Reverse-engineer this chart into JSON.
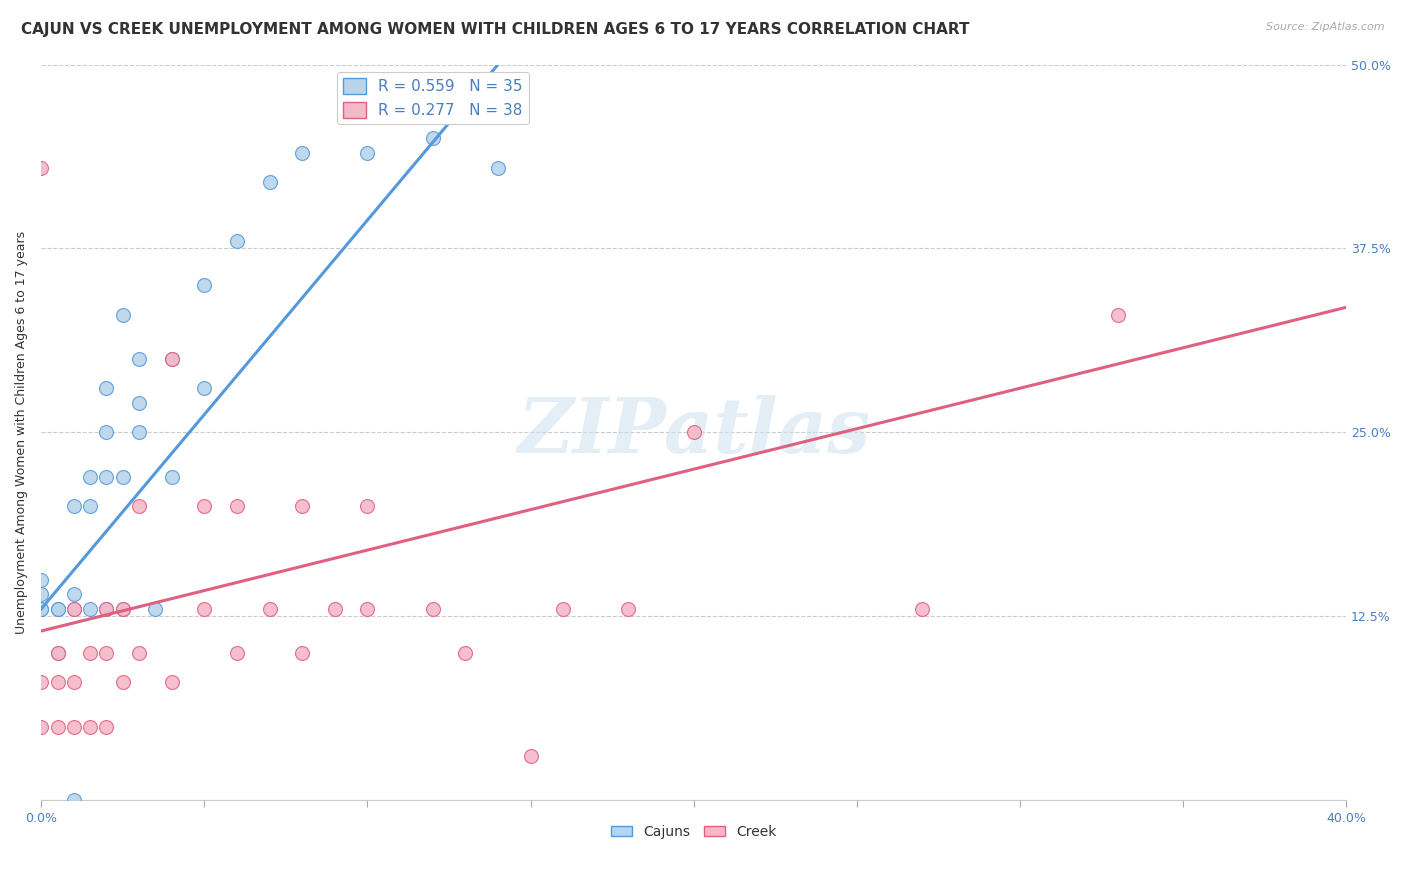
{
  "title": "CAJUN VS CREEK UNEMPLOYMENT AMONG WOMEN WITH CHILDREN AGES 6 TO 17 YEARS CORRELATION CHART",
  "source": "Source: ZipAtlas.com",
  "ylabel": "Unemployment Among Women with Children Ages 6 to 17 years",
  "xlim": [
    0.0,
    0.4
  ],
  "ylim": [
    0.0,
    0.5
  ],
  "xticks": [
    0.0,
    0.05,
    0.1,
    0.15,
    0.2,
    0.25,
    0.3,
    0.35,
    0.4
  ],
  "yticks_right": [
    0.0,
    0.125,
    0.25,
    0.375,
    0.5
  ],
  "ytick_right_labels": [
    "",
    "12.5%",
    "25.0%",
    "37.5%",
    "50.0%"
  ],
  "cajun_R": 0.559,
  "cajun_N": 35,
  "creek_R": 0.277,
  "creek_N": 38,
  "cajun_color": "#b8d4ea",
  "creek_color": "#f5b8c8",
  "cajun_line_color": "#5599dd",
  "creek_line_color": "#e06080",
  "cajun_scatter_x": [
    0.0,
    0.0,
    0.0,
    0.0,
    0.005,
    0.005,
    0.005,
    0.01,
    0.01,
    0.01,
    0.01,
    0.015,
    0.015,
    0.015,
    0.02,
    0.02,
    0.02,
    0.02,
    0.025,
    0.025,
    0.025,
    0.03,
    0.03,
    0.03,
    0.035,
    0.04,
    0.04,
    0.05,
    0.05,
    0.06,
    0.07,
    0.08,
    0.1,
    0.12,
    0.14
  ],
  "cajun_scatter_y": [
    0.13,
    0.13,
    0.14,
    0.15,
    0.1,
    0.13,
    0.13,
    0.0,
    0.13,
    0.14,
    0.2,
    0.13,
    0.2,
    0.22,
    0.13,
    0.22,
    0.25,
    0.28,
    0.13,
    0.22,
    0.33,
    0.25,
    0.27,
    0.3,
    0.13,
    0.22,
    0.3,
    0.28,
    0.35,
    0.38,
    0.42,
    0.44,
    0.44,
    0.45,
    0.43
  ],
  "creek_scatter_x": [
    0.0,
    0.0,
    0.0,
    0.005,
    0.005,
    0.005,
    0.01,
    0.01,
    0.01,
    0.015,
    0.015,
    0.02,
    0.02,
    0.02,
    0.025,
    0.025,
    0.03,
    0.03,
    0.04,
    0.04,
    0.05,
    0.05,
    0.06,
    0.06,
    0.07,
    0.08,
    0.08,
    0.09,
    0.1,
    0.1,
    0.12,
    0.13,
    0.15,
    0.16,
    0.18,
    0.2,
    0.27,
    0.33
  ],
  "creek_scatter_y": [
    0.05,
    0.08,
    0.43,
    0.05,
    0.08,
    0.1,
    0.05,
    0.08,
    0.13,
    0.05,
    0.1,
    0.05,
    0.1,
    0.13,
    0.08,
    0.13,
    0.1,
    0.2,
    0.08,
    0.3,
    0.13,
    0.2,
    0.1,
    0.2,
    0.13,
    0.1,
    0.2,
    0.13,
    0.13,
    0.2,
    0.13,
    0.1,
    0.03,
    0.13,
    0.13,
    0.25,
    0.13,
    0.33
  ],
  "cajun_line_x": [
    0.0,
    0.14
  ],
  "cajun_line_y": [
    0.13,
    0.5
  ],
  "creek_line_x": [
    0.0,
    0.4
  ],
  "creek_line_y": [
    0.115,
    0.335
  ],
  "watermark": "ZIPatlas",
  "background_color": "#ffffff",
  "grid_color": "#cccccc",
  "title_fontsize": 11,
  "axis_label_fontsize": 9,
  "tick_fontsize": 9,
  "legend_fontsize": 10,
  "scatter_size": 100
}
